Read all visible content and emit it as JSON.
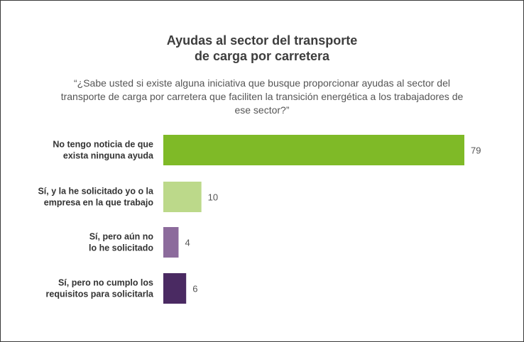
{
  "chart_data": {
    "type": "bar",
    "orientation": "horizontal",
    "title_lines": [
      "Ayudas al sector del transporte",
      "de carga por carretera"
    ],
    "subtitle": "“¿Sabe usted si existe alguna iniciativa que busque proporcionar ayudas al sector del transporte de carga por carretera que faciliten la transición energética a los trabajadores de ese sector?”",
    "categories": [
      [
        "No tengo noticia de que",
        "exista ninguna ayuda"
      ],
      [
        "Sí, y la he solicitado yo o la",
        "empresa en la que trabajo"
      ],
      [
        "Sí, pero aún no",
        "lo he solicitado"
      ],
      [
        "Sí, pero no cumplo los",
        "requisitos para solicitarla"
      ]
    ],
    "values": [
      79,
      10,
      4,
      6
    ],
    "colors": [
      "#7fba27",
      "#bcd98a",
      "#8c6b9c",
      "#4a2a62"
    ],
    "xlim": [
      0,
      79
    ],
    "grid": false,
    "legend": "none"
  }
}
